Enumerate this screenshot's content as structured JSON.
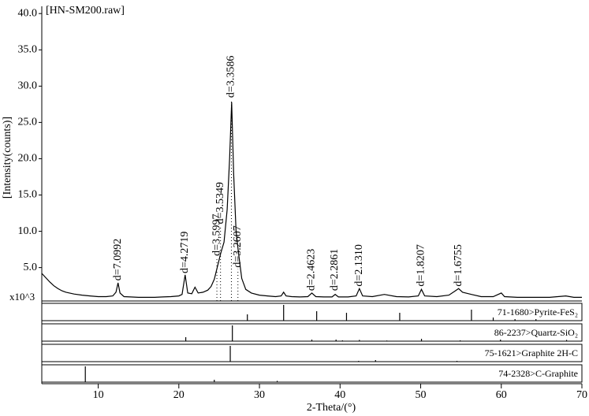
{
  "chart_data": {
    "type": "line",
    "title": "[HN-SM200.raw]",
    "x_label": "2-Theta/(°)",
    "y_label": "[Intensity(counts)]",
    "y_unit": "x10^3",
    "color": "#000000",
    "xlim": [
      3,
      70
    ],
    "xticks": [
      10,
      20,
      30,
      40,
      50,
      60,
      70
    ],
    "ylim": [
      0.4,
      41
    ],
    "yticks": [
      {
        "value": 5,
        "label": "5.0"
      },
      {
        "value": 10,
        "label": "10.0"
      },
      {
        "value": 15,
        "label": "15.0"
      },
      {
        "value": 20,
        "label": "20.0"
      },
      {
        "value": 25,
        "label": "25.0"
      },
      {
        "value": 30,
        "label": "30.0"
      },
      {
        "value": 35,
        "label": "35.0"
      },
      {
        "value": 40,
        "label": "40.0"
      }
    ],
    "x": [
      3,
      3.5,
      4,
      4.5,
      5,
      5.5,
      6,
      7,
      8,
      9,
      10,
      11,
      11.8,
      12.2,
      12.46,
      12.7,
      13.2,
      14,
      15,
      16,
      17,
      18,
      19,
      20,
      20.4,
      20.78,
      21.1,
      21.6,
      22,
      22.4,
      23,
      23.6,
      24,
      24.4,
      24.8,
      25.2,
      25.6,
      26,
      26.3,
      26.55,
      26.8,
      27.1,
      27.4,
      27.8,
      28.3,
      29,
      30,
      31,
      32,
      32.7,
      33,
      33.3,
      34,
      35,
      36,
      36.5,
      37,
      38,
      39,
      39.4,
      39.8,
      41,
      42,
      42.4,
      42.8,
      44,
      45.5,
      47,
      48.5,
      49.7,
      50.1,
      50.5,
      52,
      53.5,
      54.3,
      54.7,
      55.2,
      56.3,
      57.5,
      59,
      60,
      60.4,
      62,
      64,
      66,
      68,
      69,
      70
    ],
    "values": [
      4.2,
      3.6,
      3.0,
      2.5,
      2.1,
      1.8,
      1.6,
      1.35,
      1.2,
      1.1,
      1.0,
      1.0,
      1.1,
      1.6,
      2.9,
      1.5,
      1.0,
      0.95,
      0.9,
      0.9,
      0.9,
      0.95,
      1.0,
      1.1,
      1.3,
      4.0,
      1.5,
      1.4,
      2.3,
      1.5,
      1.6,
      1.9,
      2.4,
      3.4,
      5.2,
      7.0,
      8.5,
      13,
      20,
      27.8,
      18,
      10,
      7,
      3.5,
      2.0,
      1.5,
      1.2,
      1.1,
      1.0,
      1.1,
      1.6,
      1.1,
      1.0,
      0.95,
      1.0,
      1.5,
      1.0,
      0.95,
      0.95,
      1.3,
      0.95,
      0.95,
      1.1,
      2.1,
      1.1,
      1.0,
      1.3,
      1.0,
      0.95,
      1.1,
      2.0,
      1.1,
      1.0,
      1.2,
      1.8,
      2.1,
      1.6,
      1.3,
      1.0,
      1.0,
      1.5,
      1.0,
      0.9,
      0.9,
      0.9,
      1.1,
      0.9,
      0.9
    ],
    "peaks": [
      {
        "x": 12.46,
        "y": 3.2,
        "label": "d=7.0992",
        "dotted": false
      },
      {
        "x": 20.78,
        "y": 4.2,
        "label": "d=4.2719",
        "dotted": false
      },
      {
        "x": 24.72,
        "y": 6.6,
        "label": "d=3.5997",
        "dotted": true
      },
      {
        "x": 25.17,
        "y": 11,
        "label": "d=3.5349",
        "dotted": true
      },
      {
        "x": 26.52,
        "y": 28.4,
        "label": "d=3.3586",
        "dotted": true
      },
      {
        "x": 27.33,
        "y": 5,
        "label": "d=3.2607",
        "dotted": true
      },
      {
        "x": 36.46,
        "y": 1.8,
        "label": "d=2.4623",
        "dotted": false
      },
      {
        "x": 39.38,
        "y": 1.8,
        "label": "d=2.2861",
        "dotted": false
      },
      {
        "x": 42.38,
        "y": 2.4,
        "label": "d=2.1310",
        "dotted": false
      },
      {
        "x": 50.08,
        "y": 2.4,
        "label": "d=1.8207",
        "dotted": false
      },
      {
        "x": 54.74,
        "y": 2.4,
        "label": "d=1.6755",
        "dotted": false
      }
    ],
    "references": [
      {
        "label": "71-1680>Pyrite-FeS₂",
        "x": [
          28.5,
          33.0,
          37.1,
          40.8,
          47.4,
          56.3,
          59.0,
          61.7,
          64.3
        ],
        "values": [
          0.4,
          1.0,
          0.6,
          0.5,
          0.5,
          0.7,
          0.2,
          0.1,
          0.1
        ]
      },
      {
        "label": "86-2237>Quartz-SiO₂",
        "x": [
          20.86,
          26.64,
          36.5,
          39.5,
          40.3,
          42.4,
          45.8,
          50.1,
          54.9,
          59.9,
          68.1
        ],
        "values": [
          0.25,
          1.0,
          0.1,
          0.1,
          0.05,
          0.08,
          0.04,
          0.15,
          0.05,
          0.1,
          0.08
        ]
      },
      {
        "label": "75-1621>Graphite 2H-C",
        "x": [
          26.38,
          42.3,
          44.4,
          54.5
        ],
        "values": [
          1.0,
          0.05,
          0.1,
          0.05
        ]
      },
      {
        "label": "74-2328>C-Graphite",
        "x": [
          8.4,
          24.4,
          32.2
        ],
        "values": [
          1.0,
          0.15,
          0.08
        ]
      }
    ]
  }
}
